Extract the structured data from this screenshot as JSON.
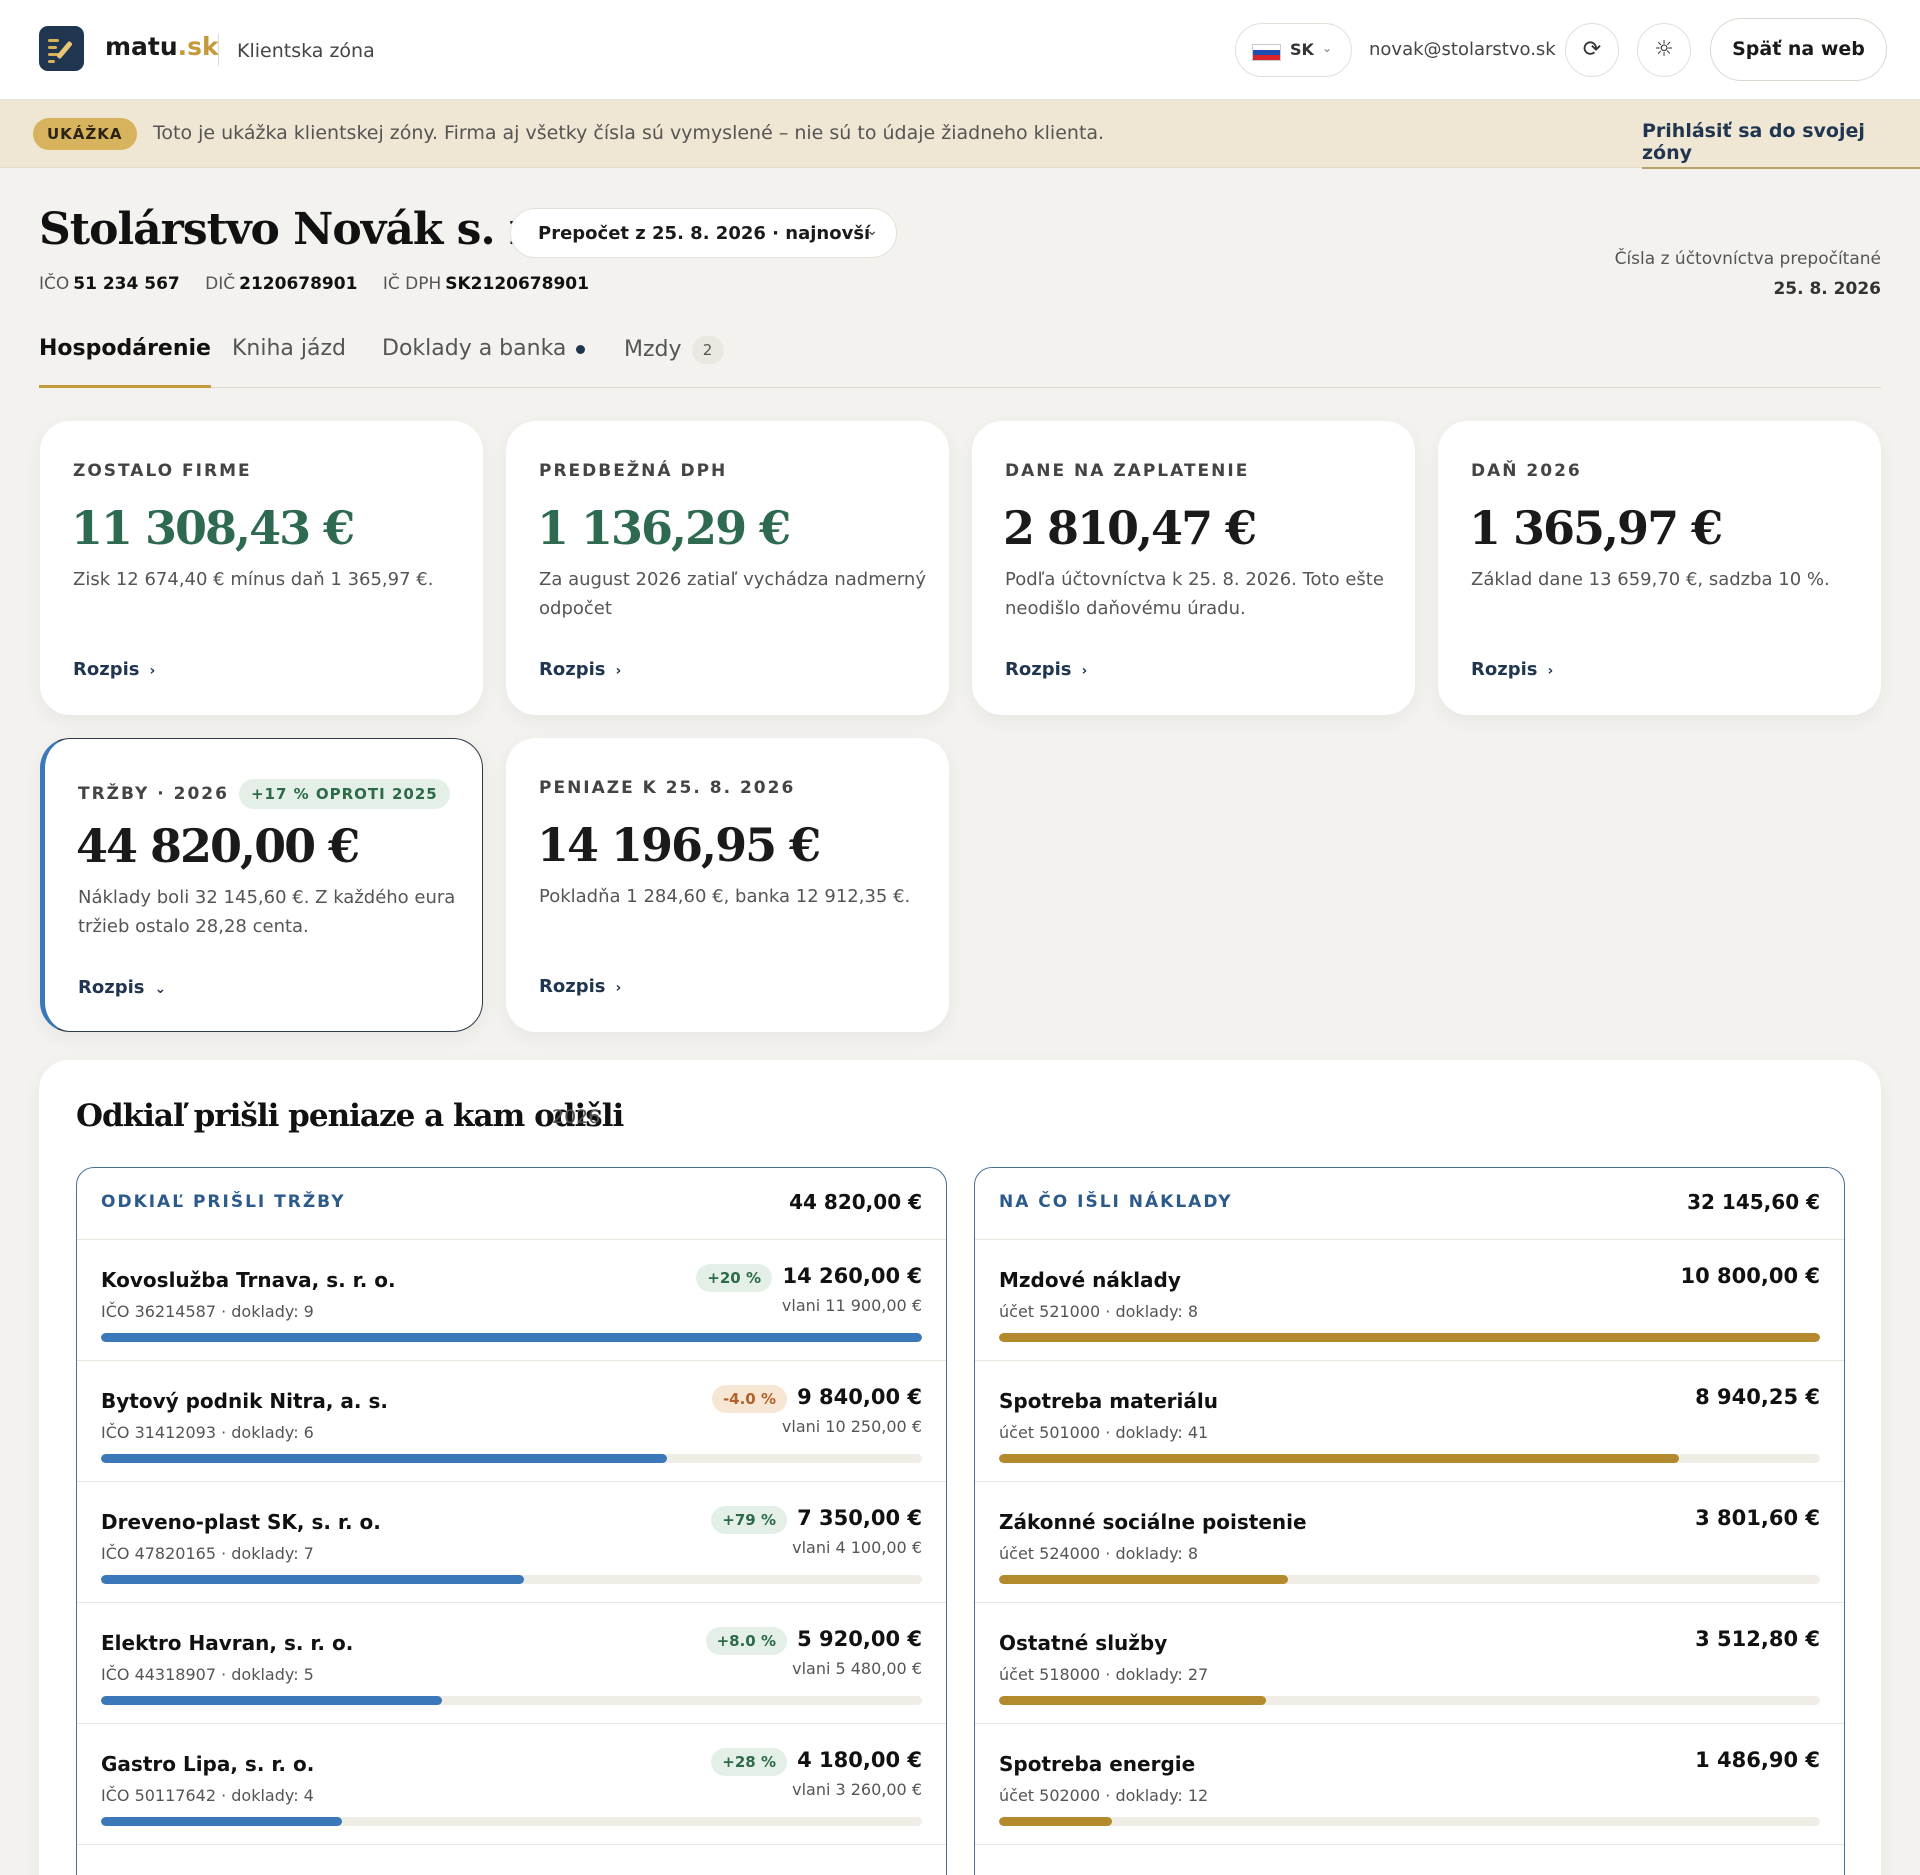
{
  "header": {
    "brand_main": "matu",
    "brand_tld": ".sk",
    "zone_label": "Klientska zóna",
    "lang_code": "SK",
    "email": "novak@stolarstvo.sk",
    "back_label": "Späť na web"
  },
  "banner": {
    "badge": "UKÁŽKA",
    "text": "Toto je ukážka klientskej zóny. Firma aj všetky čísla sú vymyslené – nie sú to údaje žiadneho klienta.",
    "login_link": "Prihlásiť sa do svojej zóny"
  },
  "company": {
    "name": "Stolárstvo Novák s. r. o.",
    "recalc_select": "Prepočet z 25. 8. 2026 · najnovší",
    "ico_label": "IČO",
    "ico": "51 234 567",
    "dic_label": "DIČ",
    "dic": "2120678901",
    "icdph_label": "IČ DPH",
    "icdph": "SK2120678901",
    "note_line1": "Čísla z účtovníctva prepočítané",
    "note_date": "25. 8. 2026"
  },
  "tabs": [
    {
      "label": "Hospodárenie"
    },
    {
      "label": "Kniha jázd"
    },
    {
      "label": "Doklady a banka"
    },
    {
      "label": "Mzdy",
      "count": "2"
    }
  ],
  "cards": [
    {
      "label": "ZOSTALO FIRME",
      "value": "11 308,43 €",
      "desc": "Zisk 12 674,40 € mínus daň 1 365,97 €.",
      "more": "Rozpis"
    },
    {
      "label": "PREDBEŽNÁ DPH",
      "value": "1 136,29 €",
      "desc": "Za august 2026 zatiaľ vychádza nadmerný odpočet",
      "more": "Rozpis"
    },
    {
      "label": "DANE NA ZAPLATENIE",
      "value": "2 810,47 €",
      "desc": "Podľa účtovníctva k 25. 8. 2026. Toto ešte neodišlo daňovému úradu.",
      "more": "Rozpis"
    },
    {
      "label": "DAŇ 2026",
      "value": "1 365,97 €",
      "desc": "Základ dane 13 659,70 €, sadzba 10 %.",
      "more": "Rozpis"
    },
    {
      "label": "TRŽBY · 2026",
      "trend": "+17 % OPROTI 2025",
      "value": "44 820,00 €",
      "desc": "Náklady boli 32 145,60 €. Z každého eura tržieb ostalo 28,28 centa.",
      "more": "Rozpis"
    },
    {
      "label": "PENIAZE K 25. 8. 2026",
      "value": "14 196,95 €",
      "desc": "Pokladňa 1 284,60 €, banka 12 912,35 €.",
      "more": "Rozpis"
    }
  ],
  "flows": {
    "title": "Odkiaľ prišli peniaze a kam odišli",
    "year": "2026",
    "revenue": {
      "title": "ODKIAĽ PRIŠLI TRŽBY",
      "total": "44 820,00 €",
      "rows": [
        {
          "name": "Kovoslužba Trnava, s. r. o.",
          "sub": "IČO 36214587 · doklady: 9",
          "amount": "14 260,00 €",
          "prev": "vlani 11 900,00 €",
          "change": "+20 %",
          "dir": "up",
          "share": 1.0
        },
        {
          "name": "Bytový podnik Nitra, a. s.",
          "sub": "IČO 31412093 · doklady: 6",
          "amount": "9 840,00 €",
          "prev": "vlani 10 250,00 €",
          "change": "-4.0 %",
          "dir": "down",
          "share": 0.69
        },
        {
          "name": "Dreveno-plast SK, s. r. o.",
          "sub": "IČO 47820165 · doklady: 7",
          "amount": "7 350,00 €",
          "prev": "vlani 4 100,00 €",
          "change": "+79 %",
          "dir": "up",
          "share": 0.515
        },
        {
          "name": "Elektro Havran, s. r. o.",
          "sub": "IČO 44318907 · doklady: 5",
          "amount": "5 920,00 €",
          "prev": "vlani 5 480,00 €",
          "change": "+8.0 %",
          "dir": "up",
          "share": 0.415
        },
        {
          "name": "Gastro Lipa, s. r. o.",
          "sub": "IČO 50117642 · doklady: 4",
          "amount": "4 180,00 €",
          "prev": "vlani 3 260,00 €",
          "change": "+28 %",
          "dir": "up",
          "share": 0.293
        }
      ]
    },
    "costs": {
      "title": "NA ČO IŠLI NÁKLADY",
      "total": "32 145,60 €",
      "rows": [
        {
          "name": "Mzdové náklady",
          "sub": "účet 521000 · doklady: 8",
          "amount": "10 800,00 €",
          "share": 1.0
        },
        {
          "name": "Spotreba materiálu",
          "sub": "účet 501000 · doklady: 41",
          "amount": "8 940,25 €",
          "share": 0.828
        },
        {
          "name": "Zákonné sociálne poistenie",
          "sub": "účet 524000 · doklady: 8",
          "amount": "3 801,60 €",
          "share": 0.352
        },
        {
          "name": "Ostatné služby",
          "sub": "účet 518000 · doklady: 27",
          "amount": "3 512,80 €",
          "share": 0.325
        },
        {
          "name": "Spotreba energie",
          "sub": "účet 502000 · doklady: 12",
          "amount": "1 486,90 €",
          "share": 0.138
        }
      ]
    }
  },
  "colors": {
    "accent_gold": "#c59a3c",
    "navy": "#1f3550",
    "green_value": "#2e6a50",
    "revenue_bar": "#3a78b9",
    "cost_bar": "#b38a2d"
  }
}
